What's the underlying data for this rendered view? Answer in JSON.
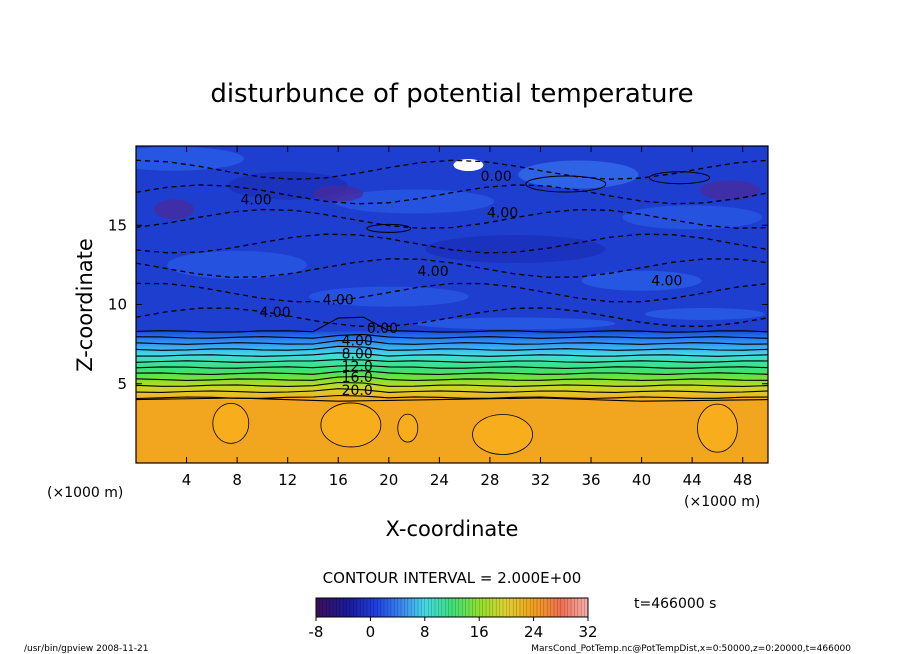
{
  "chart_data": {
    "type": "heatmap",
    "title": "disturbunce of potential temperature",
    "xlabel": "X-coordinate",
    "ylabel": "Z-coordinate",
    "x_unit": "(×1000 m)",
    "y_unit": "(×1000 m)",
    "xlim": [
      0,
      50
    ],
    "ylim": [
      0,
      20
    ],
    "x_ticks": [
      4,
      8,
      12,
      16,
      20,
      24,
      28,
      32,
      36,
      40,
      44,
      48
    ],
    "y_ticks": [
      5,
      10,
      15
    ],
    "contour_interval_text": "CONTOUR INTERVAL = 2.000E+00",
    "colorbar": {
      "min": -8,
      "max": 32,
      "ticks": [
        -8,
        0,
        8,
        16,
        24,
        32
      ]
    },
    "time_label": "t=466000 s",
    "contour_labels": [
      {
        "text": "0.00",
        "x": 28.5,
        "z": 17.8
      },
      {
        "text": "4.00",
        "x": 9.5,
        "z": 16.3
      },
      {
        "text": "4.00",
        "x": 29.0,
        "z": 15.5
      },
      {
        "text": "4.00",
        "x": 23.5,
        "z": 11.8
      },
      {
        "text": "4.00",
        "x": 42.0,
        "z": 11.2
      },
      {
        "text": "4.00",
        "x": 16.0,
        "z": 10.0
      },
      {
        "text": "4.00",
        "x": 11.0,
        "z": 9.2
      },
      {
        "text": "0.00",
        "x": 19.5,
        "z": 8.2
      },
      {
        "text": "4.00",
        "x": 17.5,
        "z": 7.4
      },
      {
        "text": "8.00",
        "x": 17.5,
        "z": 6.6
      },
      {
        "text": "12.0",
        "x": 17.5,
        "z": 5.8
      },
      {
        "text": "16.0",
        "x": 17.5,
        "z": 5.1
      },
      {
        "text": "20.0",
        "x": 17.5,
        "z": 4.3
      }
    ],
    "field_description": {
      "lower_layer_top_z": 4.0,
      "lower_layer_value": 24,
      "stratified_layer_z": [
        4.0,
        8.3
      ],
      "upper_layer_value_range": [
        -6,
        0
      ]
    }
  },
  "footer": {
    "left": "/usr/bin/gpview   2008-11-21",
    "right": "MarsCond_PotTemp.nc@PotTempDist,x=0:50000,z=0:20000,t=466000"
  }
}
